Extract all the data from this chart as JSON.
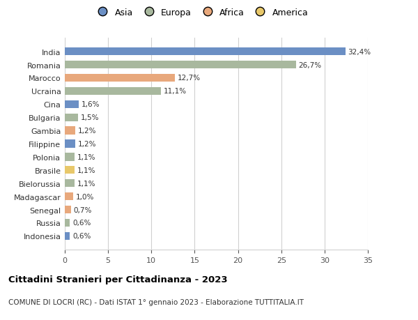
{
  "categories": [
    "Indonesia",
    "Russia",
    "Senegal",
    "Madagascar",
    "Bielorussia",
    "Brasile",
    "Polonia",
    "Filippine",
    "Gambia",
    "Bulgaria",
    "Cina",
    "Ucraina",
    "Marocco",
    "Romania",
    "India"
  ],
  "values": [
    0.6,
    0.6,
    0.7,
    1.0,
    1.1,
    1.1,
    1.1,
    1.2,
    1.2,
    1.5,
    1.6,
    11.1,
    12.7,
    26.7,
    32.4
  ],
  "labels": [
    "0,6%",
    "0,6%",
    "0,7%",
    "1,0%",
    "1,1%",
    "1,1%",
    "1,1%",
    "1,2%",
    "1,2%",
    "1,5%",
    "1,6%",
    "11,1%",
    "12,7%",
    "26,7%",
    "32,4%"
  ],
  "colors": [
    "#6b8fc4",
    "#a8b89e",
    "#e8a87c",
    "#e8a87c",
    "#a8b89e",
    "#e8c86a",
    "#a8b89e",
    "#6b8fc4",
    "#e8a87c",
    "#a8b89e",
    "#6b8fc4",
    "#a8b89e",
    "#e8a87c",
    "#a8b89e",
    "#6b8fc4"
  ],
  "legend_labels": [
    "Asia",
    "Europa",
    "Africa",
    "America"
  ],
  "legend_colors": [
    "#6b8fc4",
    "#a8b89e",
    "#e8a87c",
    "#e8c86a"
  ],
  "xlim": [
    0,
    35
  ],
  "xticks": [
    0,
    5,
    10,
    15,
    20,
    25,
    30,
    35
  ],
  "title": "Cittadini Stranieri per Cittadinanza - 2023",
  "subtitle": "COMUNE DI LOCRI (RC) - Dati ISTAT 1° gennaio 2023 - Elaborazione TUTTITALIA.IT",
  "bg_color": "#ffffff",
  "grid_color": "#d0d0d0",
  "bar_height": 0.6
}
